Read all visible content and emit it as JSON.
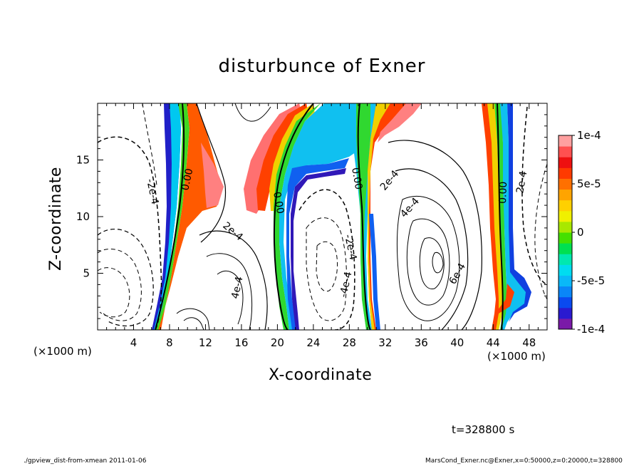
{
  "chart_data": {
    "type": "heatmap",
    "title": "disturbunce of Exner",
    "xlabel": "X-coordinate",
    "ylabel": "Z-coordinate",
    "x_unit_left": "(×1000 m)",
    "x_unit_right": "(×1000 m)",
    "xlim": [
      0,
      50
    ],
    "ylim": [
      0,
      20
    ],
    "x_ticks": [
      "4",
      "8",
      "12",
      "16",
      "20",
      "24",
      "28",
      "32",
      "36",
      "40",
      "44",
      "48"
    ],
    "y_ticks": [
      "5",
      "10",
      "15"
    ],
    "colorbar": {
      "range": [
        -0.0001,
        0.0001
      ],
      "tick_labels": [
        "1e-4",
        "5e-5",
        "0",
        "-5e-5",
        "-1e-4"
      ],
      "colors": [
        "#7a1aa8",
        "#2a1ad0",
        "#0a4af0",
        "#0a86f8",
        "#0ab8f8",
        "#00dcf0",
        "#00e8b0",
        "#00e050",
        "#44e000",
        "#a8e800",
        "#f0f000",
        "#ffd000",
        "#ffa400",
        "#ff7000",
        "#ff3a00",
        "#ee1010",
        "#ff5050",
        "#ffa0a0"
      ]
    },
    "contour_labels": [
      "-2e-4",
      "0.00",
      "2e-4",
      "4e-4",
      "0.00",
      "-2e-4",
      "-4e-4",
      "0.00",
      "2e-4",
      "4e-4",
      "6e-4",
      "0.00",
      "2e-4"
    ],
    "time_label": "t=328800 s"
  },
  "footer": {
    "left": "./gpview_dist-from-xmean  2011-01-06",
    "right": "MarsCond_Exner.nc@Exner,x=0:50000,z=0:20000,t=328800"
  }
}
